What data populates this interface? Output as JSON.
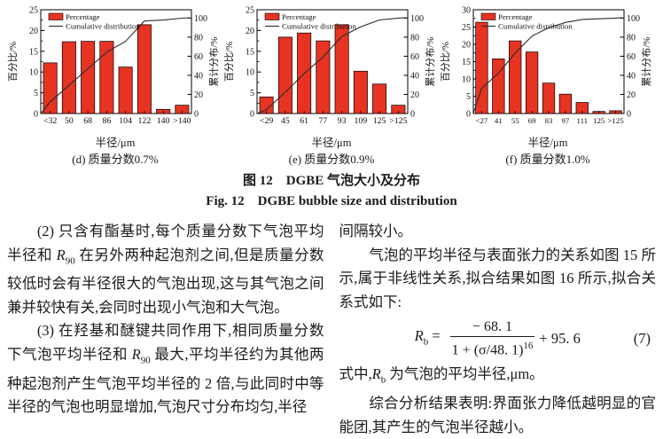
{
  "figure": {
    "caption_zh": "图 12　DGBE 气泡大小及分布",
    "caption_en": "Fig. 12　DGBE bubble size and distribution"
  },
  "chart_data": [
    {
      "type": "bar",
      "caption": "(d) 质量分数0.7%",
      "xlabel": "半径/μm",
      "ylabel_left": "百分比/%",
      "ylabel_right": "累计分布/%",
      "legend": [
        "Percentage",
        "Cumulative distribution"
      ],
      "categories": [
        "<32",
        "50",
        "68",
        "86",
        "104",
        "122",
        "140",
        ">140"
      ],
      "values": [
        12.2,
        17.3,
        17.4,
        17.4,
        11.2,
        21.4,
        1.0,
        2.0
      ],
      "cumulative": [
        12.2,
        29.5,
        46.9,
        64.3,
        75.5,
        96.9,
        97.9,
        99.9
      ],
      "ylim_left": [
        0,
        25
      ],
      "yticks_left": [
        0,
        5,
        10,
        15,
        20,
        25
      ],
      "ylim_right": [
        0,
        100
      ],
      "yticks_right": [
        0,
        20,
        40,
        60,
        80,
        100
      ],
      "bar_color": "#e63322",
      "line_color": "#2b2b2b"
    },
    {
      "type": "bar",
      "caption": "(e) 质量分数0.9%",
      "xlabel": "半径/μm",
      "ylabel_left": "百分比/%",
      "ylabel_right": "累计分布/%",
      "legend": [
        "Percentage",
        "Cumulative distribution"
      ],
      "categories": [
        "<29",
        "45",
        "61",
        "77",
        "93",
        "109",
        "125",
        ">125"
      ],
      "values": [
        4.0,
        18.4,
        19.4,
        17.5,
        21.4,
        10.2,
        7.1,
        2.0
      ],
      "cumulative": [
        4.0,
        22.4,
        41.8,
        59.3,
        80.7,
        90.9,
        98.0,
        100.0
      ],
      "ylim_left": [
        0,
        25
      ],
      "yticks_left": [
        0,
        5,
        10,
        15,
        20,
        25
      ],
      "ylim_right": [
        0,
        100
      ],
      "yticks_right": [
        0,
        20,
        40,
        60,
        80,
        100
      ],
      "bar_color": "#e63322",
      "line_color": "#2b2b2b"
    },
    {
      "type": "bar",
      "caption": "(f) 质量分数1.0%",
      "xlabel": "半径/μm",
      "ylabel_left": "百分比/%",
      "ylabel_right": "累计分布/%",
      "legend": [
        "Percentage",
        "Cumulative distribution"
      ],
      "categories": [
        "<27",
        "41",
        "55",
        "69",
        "83",
        "97",
        "111",
        "125",
        ">125"
      ],
      "values": [
        26.4,
        15.8,
        21.0,
        17.8,
        8.8,
        5.6,
        3.2,
        0.6,
        0.8
      ],
      "cumulative": [
        26.4,
        42.2,
        63.2,
        81.0,
        89.8,
        95.4,
        98.6,
        99.2,
        100.0
      ],
      "ylim_left": [
        0,
        30
      ],
      "yticks_left": [
        0,
        5,
        10,
        15,
        20,
        25,
        30
      ],
      "ylim_right": [
        0,
        100
      ],
      "yticks_right": [
        0,
        20,
        40,
        60,
        80,
        100
      ],
      "bar_color": "#e63322",
      "line_color": "#2b2b2b"
    }
  ],
  "text": {
    "left_p1": {
      "indent": true,
      "runs": [
        {
          "t": "(2) 只含有酯基时,每个质量分数下气泡平均半径和 "
        },
        {
          "t": "R",
          "i": 1
        },
        {
          "t": "90",
          "sub": 1
        },
        {
          "t": " 在另外两种起泡剂之间,但是质量分数较低时会有半径很大的气泡出现,这与其气泡之间兼并较快有关,会同时出现小气泡和大气泡。"
        }
      ]
    },
    "left_p2": {
      "indent": true,
      "runs": [
        {
          "t": "(3) 在羟基和醚键共同作用下,相同质量分数下气泡平均半径和 "
        },
        {
          "t": "R",
          "i": 1
        },
        {
          "t": "90",
          "sub": 1
        },
        {
          "t": " 最大,平均半径约为其他两种起泡剂产生气泡平均半径的 2 倍,与此同时中等半径的气泡也明显增加,气泡尺寸分布均匀,半径"
        }
      ]
    },
    "right_p1": {
      "indent": false,
      "runs": [
        {
          "t": "间隔较小。"
        }
      ]
    },
    "right_p2": {
      "indent": true,
      "runs": [
        {
          "t": "气泡的平均半径与表面张力的关系如图 15 所示,属于非线性关系,拟合结果如图 16 所示,拟合关系式如下:"
        }
      ]
    },
    "right_p3": {
      "indent": false,
      "runs": [
        {
          "t": "式中,"
        },
        {
          "t": "R",
          "i": 1
        },
        {
          "t": "b",
          "sub": 1
        },
        {
          "t": " 为气泡的平均半径,μm。"
        }
      ]
    },
    "right_p4": {
      "indent": true,
      "runs": [
        {
          "t": "综合分析结果表明:界面张力降低越明显的官能团,其产生的气泡半径越小。"
        }
      ]
    }
  },
  "equation": {
    "lhs": "R",
    "lhs_sub": "b",
    "equals": "=",
    "numerator": "− 68. 1",
    "den": "1 + (σ/48. 1)",
    "exponent": "16",
    "tail": "+ 95. 6",
    "number": "(7)"
  }
}
